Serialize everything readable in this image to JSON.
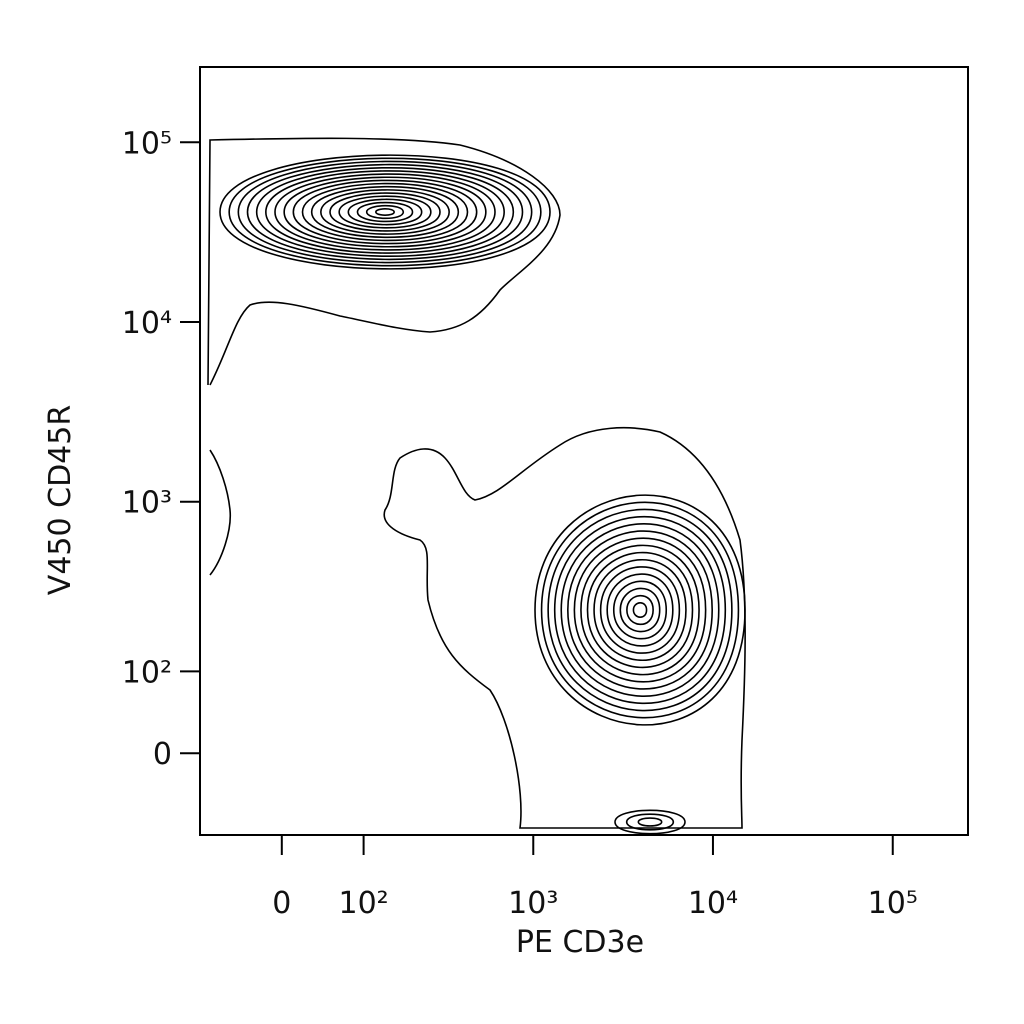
{
  "chart_data": {
    "type": "contour",
    "xlabel": "PE CD3e",
    "ylabel": "V450 CD45R",
    "xscale": "biexponential",
    "yscale": "biexponential",
    "xlim": [
      -100,
      262144
    ],
    "ylim": [
      -100,
      262144
    ],
    "xticks": [
      0,
      {
        "value": 100,
        "label": "10²"
      },
      {
        "value": 1000,
        "label": "10³"
      },
      {
        "value": 10000,
        "label": "10⁴"
      },
      {
        "value": 100000,
        "label": "10⁵"
      }
    ],
    "yticks": [
      0,
      {
        "value": 100,
        "label": "10²"
      },
      {
        "value": 1000,
        "label": "10³"
      },
      {
        "value": 10000,
        "label": "10⁴"
      },
      {
        "value": 100000,
        "label": "10⁵"
      }
    ],
    "color": "#000000"
  }
}
